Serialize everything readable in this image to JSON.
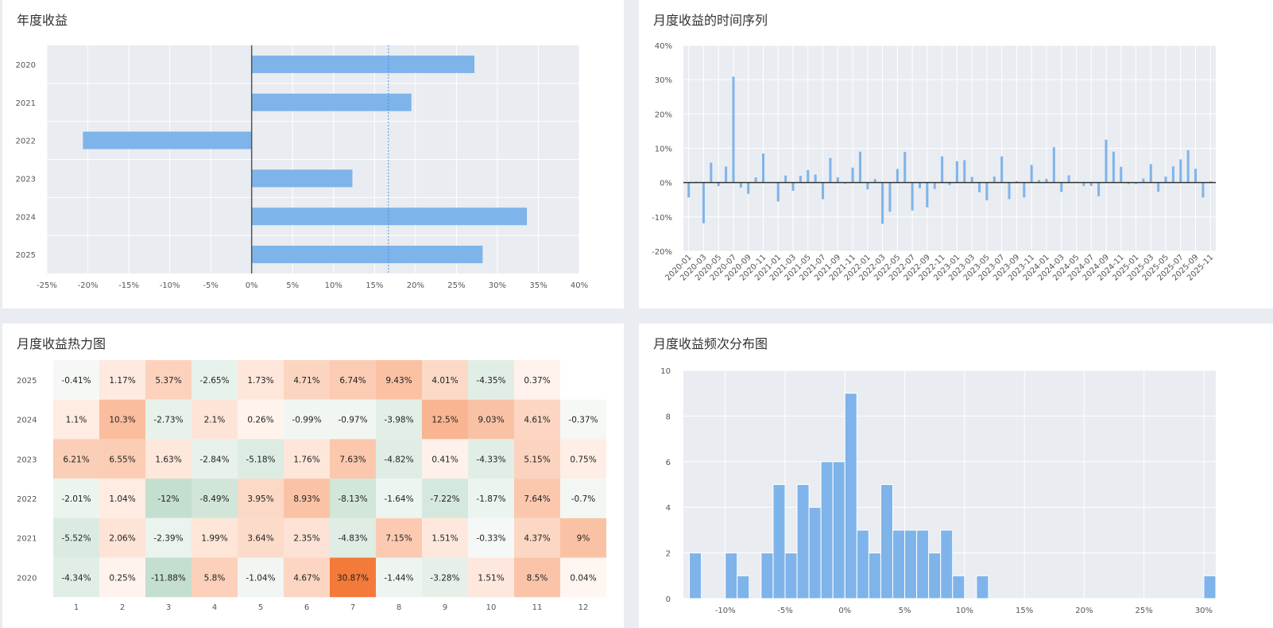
{
  "panels": {
    "annual": {
      "title": "年度收益"
    },
    "timeseries": {
      "title": "月度收益的时间序列"
    },
    "heatmap": {
      "title": "月度收益热力图"
    },
    "histogram": {
      "title": "月度收益频次分布图"
    }
  },
  "colors": {
    "bar": "#7eb4ea",
    "plot_bg": "#e9ecf1",
    "grid": "#ffffff",
    "axis": "#333333",
    "heat_positive": "#f47a3a",
    "heat_negative": "#c4dfcf"
  },
  "chart_data": [
    {
      "type": "bar",
      "orientation": "horizontal",
      "title": "年度收益",
      "categories": [
        "2020",
        "2021",
        "2022",
        "2023",
        "2024",
        "2025"
      ],
      "values": [
        27.2,
        19.5,
        -20.6,
        12.3,
        33.6,
        28.2
      ],
      "mean_line": 16.7,
      "xlim": [
        -25,
        40
      ],
      "xticks": [
        "-25%",
        "-20%",
        "-15%",
        "-10%",
        "-5%",
        "0%",
        "5%",
        "10%",
        "15%",
        "20%",
        "25%",
        "30%",
        "35%",
        "40%"
      ],
      "grid": true
    },
    {
      "type": "bar",
      "title": "月度收益的时间序列",
      "x_start": "2020-01",
      "x": [
        "2020-01",
        "2020-02",
        "2020-03",
        "2020-04",
        "2020-05",
        "2020-06",
        "2020-07",
        "2020-08",
        "2020-09",
        "2020-10",
        "2020-11",
        "2020-12",
        "2021-01",
        "2021-02",
        "2021-03",
        "2021-04",
        "2021-05",
        "2021-06",
        "2021-07",
        "2021-08",
        "2021-09",
        "2021-10",
        "2021-11",
        "2021-12",
        "2022-01",
        "2022-02",
        "2022-03",
        "2022-04",
        "2022-05",
        "2022-06",
        "2022-07",
        "2022-08",
        "2022-09",
        "2022-10",
        "2022-11",
        "2022-12",
        "2023-01",
        "2023-02",
        "2023-03",
        "2023-04",
        "2023-05",
        "2023-06",
        "2023-07",
        "2023-08",
        "2023-09",
        "2023-10",
        "2023-11",
        "2023-12",
        "2024-01",
        "2024-02",
        "2024-03",
        "2024-04",
        "2024-05",
        "2024-06",
        "2024-07",
        "2024-08",
        "2024-09",
        "2024-10",
        "2024-11",
        "2024-12",
        "2025-01",
        "2025-02",
        "2025-03",
        "2025-04",
        "2025-05",
        "2025-06",
        "2025-07",
        "2025-08",
        "2025-09",
        "2025-10",
        "2025-11"
      ],
      "values": [
        -4.34,
        0.25,
        -11.88,
        5.8,
        -1.04,
        4.67,
        30.87,
        -1.44,
        -3.28,
        1.51,
        8.5,
        0.04,
        -5.52,
        2.06,
        -2.39,
        1.99,
        3.64,
        2.35,
        -4.83,
        7.15,
        1.51,
        -0.33,
        4.37,
        9.0,
        -2.01,
        1.04,
        -12.0,
        -8.49,
        3.95,
        8.93,
        -8.13,
        -1.64,
        -7.22,
        -1.87,
        7.64,
        -0.7,
        6.21,
        6.55,
        1.63,
        -2.84,
        -5.18,
        1.76,
        7.63,
        -4.82,
        0.41,
        -4.33,
        5.15,
        0.75,
        1.1,
        10.3,
        -2.73,
        2.1,
        0.26,
        -0.99,
        -0.97,
        -3.98,
        12.5,
        9.03,
        4.61,
        -0.37,
        -0.41,
        1.17,
        5.37,
        -2.65,
        1.73,
        4.71,
        6.74,
        9.43,
        4.01,
        -4.35,
        0.37
      ],
      "xticks": [
        "2020-01",
        "2020-03",
        "2020-05",
        "2020-07",
        "2020-09",
        "2020-11",
        "2021-01",
        "2021-03",
        "2021-05",
        "2021-07",
        "2021-09",
        "2021-11",
        "2022-01",
        "2022-03",
        "2022-05",
        "2022-07",
        "2022-09",
        "2022-11",
        "2023-01",
        "2023-03",
        "2023-05",
        "2023-07",
        "2023-09",
        "2023-11",
        "2024-01",
        "2024-03",
        "2024-05",
        "2024-07",
        "2024-09",
        "2024-11",
        "2025-01",
        "2025-03",
        "2025-05",
        "2025-07",
        "2025-09",
        "2025-11"
      ],
      "ylim": [
        -20,
        40
      ],
      "yticks": [
        "-20%",
        "-10%",
        "0%",
        "10%",
        "20%",
        "30%",
        "40%"
      ],
      "grid": true
    },
    {
      "type": "heatmap",
      "title": "月度收益热力图",
      "rows": [
        "2025",
        "2024",
        "2023",
        "2022",
        "2021",
        "2020"
      ],
      "columns": [
        "1",
        "2",
        "3",
        "4",
        "5",
        "6",
        "7",
        "8",
        "9",
        "10",
        "11",
        "12"
      ],
      "values": [
        [
          -0.41,
          1.17,
          5.37,
          -2.65,
          1.73,
          4.71,
          6.74,
          9.43,
          4.01,
          -4.35,
          0.37,
          null
        ],
        [
          1.1,
          10.3,
          -2.73,
          2.1,
          0.26,
          -0.99,
          -0.97,
          -3.98,
          12.5,
          9.03,
          4.61,
          -0.37
        ],
        [
          6.21,
          6.55,
          1.63,
          -2.84,
          -5.18,
          1.76,
          7.63,
          -4.82,
          0.41,
          -4.33,
          5.15,
          0.75
        ],
        [
          -2.01,
          1.04,
          -12,
          -8.49,
          3.95,
          8.93,
          -8.13,
          -1.64,
          -7.22,
          -1.87,
          7.64,
          -0.7
        ],
        [
          -5.52,
          2.06,
          -2.39,
          1.99,
          3.64,
          2.35,
          -4.83,
          7.15,
          1.51,
          -0.33,
          4.37,
          9
        ],
        [
          -4.34,
          0.25,
          -11.88,
          5.8,
          -1.04,
          4.67,
          30.87,
          -1.44,
          -3.28,
          1.51,
          8.5,
          0.04
        ]
      ],
      "labels": [
        [
          "-0.41%",
          "1.17%",
          "5.37%",
          "-2.65%",
          "1.73%",
          "4.71%",
          "6.74%",
          "9.43%",
          "4.01%",
          "-4.35%",
          "0.37%",
          ""
        ],
        [
          "1.1%",
          "10.3%",
          "-2.73%",
          "2.1%",
          "0.26%",
          "-0.99%",
          "-0.97%",
          "-3.98%",
          "12.5%",
          "9.03%",
          "4.61%",
          "-0.37%"
        ],
        [
          "6.21%",
          "6.55%",
          "1.63%",
          "-2.84%",
          "-5.18%",
          "1.76%",
          "7.63%",
          "-4.82%",
          "0.41%",
          "-4.33%",
          "5.15%",
          "0.75%"
        ],
        [
          "-2.01%",
          "1.04%",
          "-12%",
          "-8.49%",
          "3.95%",
          "8.93%",
          "-8.13%",
          "-1.64%",
          "-7.22%",
          "-1.87%",
          "7.64%",
          "-0.7%"
        ],
        [
          "-5.52%",
          "2.06%",
          "-2.39%",
          "1.99%",
          "3.64%",
          "2.35%",
          "-4.83%",
          "7.15%",
          "1.51%",
          "-0.33%",
          "4.37%",
          "9%"
        ],
        [
          "-4.34%",
          "0.25%",
          "-11.88%",
          "5.8%",
          "-1.04%",
          "4.67%",
          "30.87%",
          "-1.44%",
          "-3.28%",
          "1.51%",
          "8.5%",
          "0.04%"
        ]
      ]
    },
    {
      "type": "bar",
      "subtype": "histogram",
      "title": "月度收益频次分布图",
      "bin_width": 1,
      "bins_start": [
        -13,
        -10,
        -9,
        -7,
        -6,
        -5,
        -4,
        -3,
        -2,
        -1,
        0,
        1,
        2,
        3,
        4,
        5,
        6,
        7,
        8,
        9,
        11,
        30
      ],
      "counts": [
        2,
        2,
        1,
        2,
        5,
        2,
        5,
        4,
        6,
        6,
        9,
        3,
        2,
        5,
        3,
        3,
        3,
        2,
        3,
        1,
        1,
        1
      ],
      "xlim": [
        -13.5,
        31
      ],
      "ylim": [
        0,
        10
      ],
      "xticks": [
        "-10%",
        "-5%",
        "0%",
        "5%",
        "10%",
        "15%",
        "20%",
        "25%",
        "30%"
      ],
      "yticks": [
        "0",
        "2",
        "4",
        "6",
        "8",
        "10"
      ],
      "grid": true
    }
  ]
}
